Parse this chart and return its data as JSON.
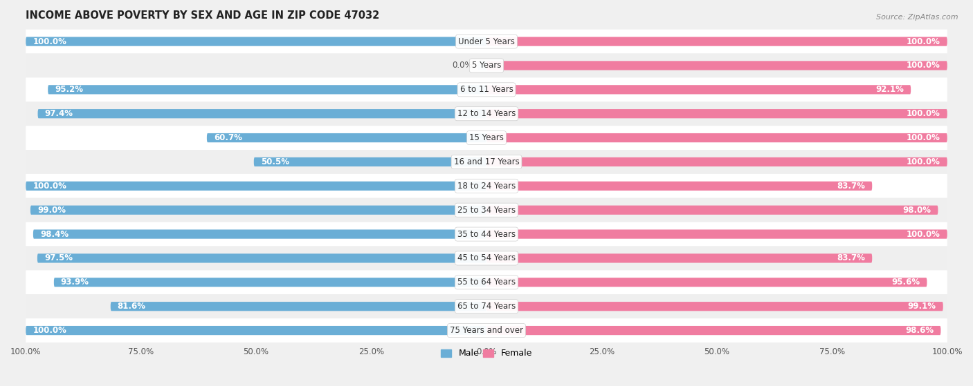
{
  "title": "INCOME ABOVE POVERTY BY SEX AND AGE IN ZIP CODE 47032",
  "source": "Source: ZipAtlas.com",
  "categories": [
    "Under 5 Years",
    "5 Years",
    "6 to 11 Years",
    "12 to 14 Years",
    "15 Years",
    "16 and 17 Years",
    "18 to 24 Years",
    "25 to 34 Years",
    "35 to 44 Years",
    "45 to 54 Years",
    "55 to 64 Years",
    "65 to 74 Years",
    "75 Years and over"
  ],
  "male_values": [
    100.0,
    0.0,
    95.2,
    97.4,
    60.7,
    50.5,
    100.0,
    99.0,
    98.4,
    97.5,
    93.9,
    81.6,
    100.0
  ],
  "female_values": [
    100.0,
    100.0,
    92.1,
    100.0,
    100.0,
    100.0,
    83.7,
    98.0,
    100.0,
    83.7,
    95.6,
    99.1,
    98.6
  ],
  "male_color": "#6aaed6",
  "female_color": "#f07ca0",
  "male_light_color": "#aed4eb",
  "female_light_color": "#f9c0d0",
  "row_colors": [
    "#ffffff",
    "#efefef"
  ],
  "background_color": "#f0f0f0",
  "title_fontsize": 10.5,
  "label_fontsize": 8.5,
  "value_fontsize": 8.5,
  "tick_fontsize": 8.5,
  "legend_fontsize": 9
}
